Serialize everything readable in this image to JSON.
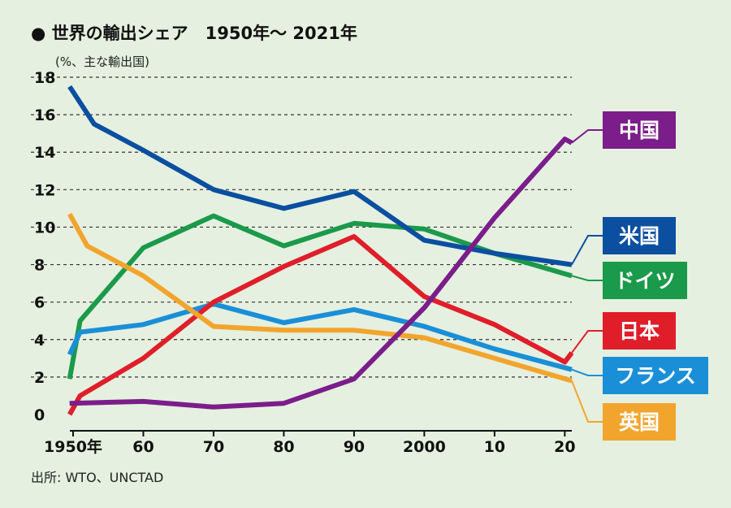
{
  "chart_data": {
    "type": "line",
    "title": "● 世界の輸出シェア　1950年～ 2021年",
    "ylabel": "(%、主な輸出国)",
    "xlabel": "",
    "ylim": [
      0,
      18
    ],
    "yticks": [
      "0",
      "2",
      "4",
      "6",
      "8",
      "10",
      "12",
      "14",
      "16",
      "18"
    ],
    "xticks": [
      {
        "x": 1950,
        "label": "1950年"
      },
      {
        "x": 1960,
        "label": "60"
      },
      {
        "x": 1970,
        "label": "70"
      },
      {
        "x": 1980,
        "label": "80"
      },
      {
        "x": 1990,
        "label": "90"
      },
      {
        "x": 2000,
        "label": "2000"
      },
      {
        "x": 2010,
        "label": "10"
      },
      {
        "x": 2020,
        "label": "20"
      }
    ],
    "xlim": [
      1950,
      2021
    ],
    "grid": true,
    "series": [
      {
        "name": "中国",
        "color": "#7b1d8a",
        "points": [
          [
            1949.5,
            0.6
          ],
          [
            1960,
            0.7
          ],
          [
            1970,
            0.4
          ],
          [
            1980,
            0.6
          ],
          [
            1990,
            1.9
          ],
          [
            2000,
            5.7
          ],
          [
            2010,
            10.5
          ],
          [
            2020,
            14.7
          ],
          [
            2021,
            14.5
          ]
        ]
      },
      {
        "name": "米国",
        "color": "#0a4fa0",
        "points": [
          [
            1949.5,
            17.5
          ],
          [
            1953,
            15.5
          ],
          [
            1960,
            14.1
          ],
          [
            1970,
            12
          ],
          [
            1980,
            11
          ],
          [
            1990,
            11.9
          ],
          [
            2000,
            9.3
          ],
          [
            2010,
            8.6
          ],
          [
            2021,
            8
          ]
        ]
      },
      {
        "name": "ドイツ",
        "color": "#1a9a4a",
        "points": [
          [
            1949.5,
            1.9
          ],
          [
            1951,
            5
          ],
          [
            1960,
            8.9
          ],
          [
            1970,
            10.6
          ],
          [
            1980,
            9
          ],
          [
            1990,
            10.2
          ],
          [
            2000,
            9.9
          ],
          [
            2010,
            8.6
          ],
          [
            2021,
            7.4
          ]
        ]
      },
      {
        "name": "日本",
        "color": "#e01e2a",
        "points": [
          [
            1949.5,
            0
          ],
          [
            1951,
            1
          ],
          [
            1960,
            3
          ],
          [
            1970,
            6
          ],
          [
            1980,
            7.9
          ],
          [
            1990,
            9.5
          ],
          [
            2000,
            6.3
          ],
          [
            2010,
            4.8
          ],
          [
            2020,
            2.8
          ],
          [
            2021,
            3.3
          ]
        ]
      },
      {
        "name": "フランス",
        "color": "#1a8fd8",
        "points": [
          [
            1949.5,
            3.2
          ],
          [
            1951,
            4.4
          ],
          [
            1960,
            4.8
          ],
          [
            1970,
            5.9
          ],
          [
            1980,
            4.9
          ],
          [
            1990,
            5.6
          ],
          [
            2000,
            4.7
          ],
          [
            2010,
            3.5
          ],
          [
            2021,
            2.4
          ]
        ]
      },
      {
        "name": "英国",
        "color": "#f2a52c",
        "points": [
          [
            1949.5,
            10.7
          ],
          [
            1952,
            9
          ],
          [
            1960,
            7.4
          ],
          [
            1970,
            4.7
          ],
          [
            1980,
            4.5
          ],
          [
            1990,
            4.5
          ],
          [
            2000,
            4.1
          ],
          [
            2010,
            3
          ],
          [
            2021,
            1.8
          ]
        ]
      }
    ],
    "source": "出所: WTO、UNCTAD"
  }
}
